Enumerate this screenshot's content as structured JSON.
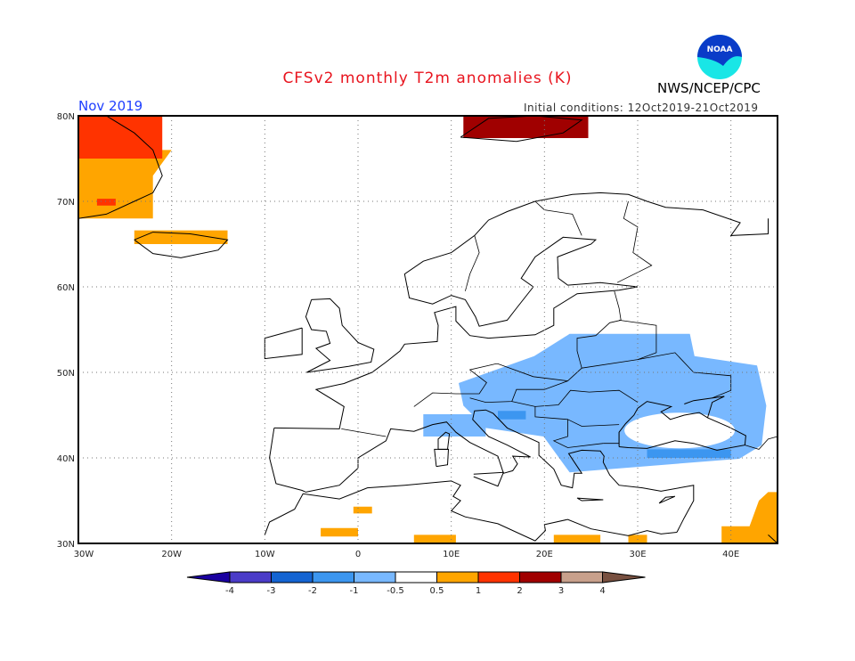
{
  "title": "CFSv2 monthly T2m anomalies (K)",
  "period": "Nov 2019",
  "initial_conditions": "Initial conditions: 12Oct2019-21Oct2019",
  "organization": "NWS/NCEP/CPC",
  "logo_text": "NOAA",
  "map": {
    "lon_range": [
      -30,
      45
    ],
    "lat_range": [
      30,
      80
    ],
    "lon_ticks": [
      "30W",
      "20W",
      "10W",
      "0",
      "10E",
      "20E",
      "30E",
      "40E"
    ],
    "lat_ticks": [
      "30N",
      "40N",
      "50N",
      "60N",
      "70N",
      "80N"
    ],
    "anomaly_regions": [
      {
        "name": "greenland-warm-orange",
        "color": "#ffa500",
        "polygon": [
          [
            -30,
            68
          ],
          [
            -22,
            68
          ],
          [
            -22,
            73
          ],
          [
            -20,
            76
          ],
          [
            -30,
            76
          ]
        ]
      },
      {
        "name": "greenland-warm-red",
        "color": "#ff3300",
        "polygon": [
          [
            -30,
            75
          ],
          [
            -21,
            75
          ],
          [
            -21,
            80
          ],
          [
            -30,
            80
          ]
        ]
      },
      {
        "name": "greenland-red-south",
        "color": "#ff3300",
        "polygon": [
          [
            -28,
            69.5
          ],
          [
            -26,
            69.5
          ],
          [
            -26,
            70.3
          ],
          [
            -28,
            70.3
          ]
        ]
      },
      {
        "name": "iceland-warm",
        "color": "#ffa500",
        "polygon": [
          [
            -24,
            65
          ],
          [
            -14,
            65
          ],
          [
            -14,
            66.6
          ],
          [
            -24,
            66.6
          ]
        ]
      },
      {
        "name": "svalbard-warm",
        "color": "#a00000",
        "polygon": [
          [
            11.3,
            77.4
          ],
          [
            24.7,
            77.4
          ],
          [
            24.7,
            80
          ],
          [
            11.3,
            80
          ]
        ]
      },
      {
        "name": "east-europe-cool",
        "color": "#78b8ff",
        "polygon": [
          [
            22.7,
            54.5
          ],
          [
            35.6,
            54.5
          ],
          [
            36.1,
            51.9
          ],
          [
            42.8,
            50.8
          ],
          [
            43.8,
            46.1
          ],
          [
            43.3,
            41.5
          ],
          [
            40.9,
            39.9
          ],
          [
            29.4,
            38.9
          ],
          [
            22.7,
            38.3
          ],
          [
            19.9,
            42.5
          ],
          [
            13.7,
            43.5
          ],
          [
            11.3,
            46.1
          ],
          [
            10.8,
            48.75
          ],
          [
            18.9,
            51.9
          ]
        ]
      },
      {
        "name": "italy-cool",
        "color": "#78b8ff",
        "polygon": [
          [
            7,
            42.5
          ],
          [
            13.7,
            42.5
          ],
          [
            13.7,
            45.1
          ],
          [
            7,
            45.1
          ]
        ]
      },
      {
        "name": "balkans-cool-medium",
        "color": "#3c96f0",
        "polygon": [
          [
            15,
            44.5
          ],
          [
            18,
            44.5
          ],
          [
            18,
            45.5
          ],
          [
            15,
            45.5
          ]
        ]
      },
      {
        "name": "turkey-cool-medium",
        "color": "#3c96f0",
        "polygon": [
          [
            31,
            40
          ],
          [
            40,
            40
          ],
          [
            40,
            41
          ],
          [
            31,
            41
          ]
        ]
      },
      {
        "name": "africa-warm-1",
        "color": "#ffa500",
        "polygon": [
          [
            -4,
            30.8
          ],
          [
            0,
            30.8
          ],
          [
            0,
            31.8
          ],
          [
            -4,
            31.8
          ]
        ]
      },
      {
        "name": "africa-warm-2",
        "color": "#ffa500",
        "polygon": [
          [
            -0.5,
            33.5
          ],
          [
            1.5,
            33.5
          ],
          [
            1.5,
            34.3
          ],
          [
            -0.5,
            34.3
          ]
        ]
      },
      {
        "name": "africa-warm-3",
        "color": "#ffa500",
        "polygon": [
          [
            6,
            30
          ],
          [
            10.5,
            30
          ],
          [
            10.5,
            31
          ],
          [
            6,
            31
          ]
        ]
      },
      {
        "name": "africa-warm-4",
        "color": "#ffa500",
        "polygon": [
          [
            21,
            30
          ],
          [
            26,
            30
          ],
          [
            26,
            31
          ],
          [
            21,
            31
          ]
        ]
      },
      {
        "name": "africa-warm-5",
        "color": "#ffa500",
        "polygon": [
          [
            29,
            30
          ],
          [
            31,
            30
          ],
          [
            31,
            31
          ],
          [
            29,
            31
          ]
        ]
      },
      {
        "name": "middle-east-warm",
        "color": "#ffa500",
        "polygon": [
          [
            39,
            30
          ],
          [
            45,
            30
          ],
          [
            45,
            36
          ],
          [
            44,
            36
          ],
          [
            43,
            35
          ],
          [
            42,
            32
          ],
          [
            39,
            32
          ]
        ]
      }
    ]
  },
  "colorbar": {
    "colors": [
      "#1a00a0",
      "#4b3cc8",
      "#1464d2",
      "#3c96f0",
      "#78b8ff",
      "#ffffff",
      "#ffa500",
      "#ff3300",
      "#a00000",
      "#c8a08c",
      "#785040"
    ],
    "labels": [
      "-4",
      "-3",
      "-2",
      "-1",
      "-0.5",
      "0.5",
      "1",
      "2",
      "3",
      "4"
    ]
  }
}
